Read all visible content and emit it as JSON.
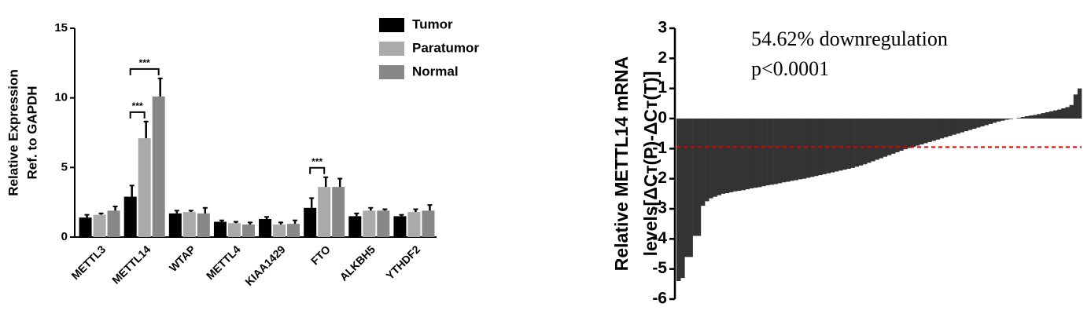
{
  "chart_data": [
    {
      "type": "grouped_bar",
      "ylabel": [
        "Relative Expression",
        "Ref. to GAPDH"
      ],
      "categories": [
        "METTL3",
        "METTL14",
        "WTAP",
        "METTL4",
        "KIAA1429",
        "FTO",
        "ALKBH5",
        "YTHDF2"
      ],
      "series": [
        {
          "name": "Tumor",
          "color": "#000000",
          "values": [
            1.4,
            2.9,
            1.7,
            1.1,
            1.3,
            2.1,
            1.5,
            1.5
          ],
          "errors": [
            0.2,
            0.8,
            0.2,
            0.1,
            0.15,
            0.7,
            0.2,
            0.1
          ]
        },
        {
          "name": "Paratumor",
          "color": "#aaaaaa",
          "values": [
            1.6,
            7.1,
            1.8,
            1.0,
            0.9,
            3.6,
            1.9,
            1.8
          ],
          "errors": [
            0.1,
            1.2,
            0.1,
            0.1,
            0.15,
            0.7,
            0.2,
            0.2
          ]
        },
        {
          "name": "Normal",
          "color": "#888888",
          "values": [
            1.9,
            10.1,
            1.7,
            0.9,
            0.95,
            3.6,
            1.9,
            1.9
          ],
          "errors": [
            0.3,
            1.3,
            0.4,
            0.15,
            0.25,
            0.6,
            0.1,
            0.4
          ]
        }
      ],
      "ylim": [
        0,
        15
      ],
      "yticks": [
        0,
        5,
        10,
        15
      ],
      "annotations": [
        {
          "text": "***",
          "category": "METTL14",
          "series": [
            "Tumor",
            "Paratumor"
          ]
        },
        {
          "text": "***",
          "category": "METTL14",
          "series": [
            "Tumor",
            "Normal"
          ]
        },
        {
          "text": "***",
          "category": "FTO",
          "series": [
            "Tumor",
            "Paratumor"
          ]
        }
      ]
    },
    {
      "type": "waterfall",
      "ylabel": [
        "Relative  METTL14  mRNA",
        "levels[ΔCт(P)-ΔCт(T)]"
      ],
      "annotations": [
        "54.62% downregulation",
        "p<0.0001"
      ],
      "color": "#333333",
      "values": [
        -5.4,
        -5.3,
        -4.6,
        -4.6,
        -3.9,
        -3.9,
        -2.9,
        -2.75,
        -2.65,
        -2.6,
        -2.55,
        -2.5,
        -2.48,
        -2.45,
        -2.42,
        -2.4,
        -2.38,
        -2.35,
        -2.32,
        -2.3,
        -2.28,
        -2.25,
        -2.22,
        -2.2,
        -2.18,
        -2.15,
        -2.12,
        -2.1,
        -2.07,
        -2.05,
        -2.02,
        -2.0,
        -1.97,
        -1.94,
        -1.91,
        -1.88,
        -1.85,
        -1.82,
        -1.79,
        -1.76,
        -1.73,
        -1.7,
        -1.67,
        -1.64,
        -1.6,
        -1.56,
        -1.52,
        -1.47,
        -1.42,
        -1.37,
        -1.32,
        -1.27,
        -1.22,
        -1.17,
        -1.12,
        -1.07,
        -1.02,
        -0.98,
        -0.94,
        -0.9,
        -0.86,
        -0.82,
        -0.78,
        -0.74,
        -0.7,
        -0.66,
        -0.62,
        -0.58,
        -0.54,
        -0.5,
        -0.46,
        -0.42,
        -0.38,
        -0.34,
        -0.3,
        -0.26,
        -0.22,
        -0.18,
        -0.14,
        -0.1,
        -0.07,
        -0.04,
        -0.02,
        0.0,
        0.02,
        0.05,
        0.08,
        0.1,
        0.12,
        0.15,
        0.18,
        0.21,
        0.24,
        0.27,
        0.3,
        0.34,
        0.38,
        0.45,
        0.8,
        1.0
      ],
      "reference_line": {
        "value": -0.95,
        "color": "#e00000",
        "style": "dashed"
      },
      "ylim": [
        -6,
        3
      ],
      "yticks": [
        -6,
        -5,
        -4,
        -3,
        -2,
        -1,
        0,
        1,
        2,
        3
      ]
    }
  ]
}
